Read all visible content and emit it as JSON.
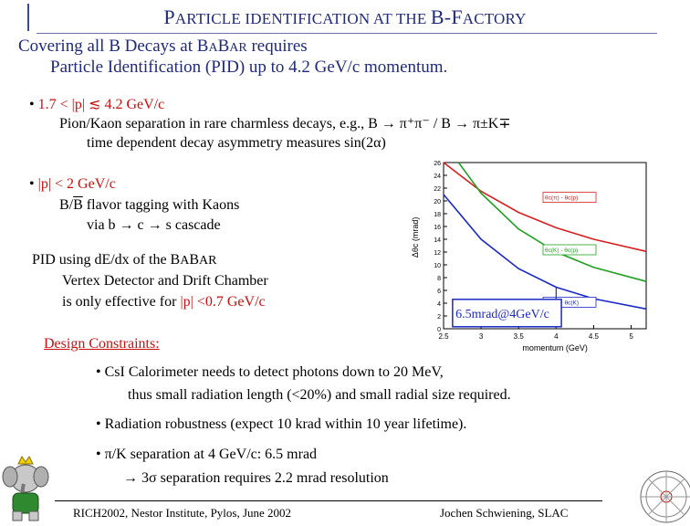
{
  "title": {
    "p1": "P",
    "p2": "ARTICLE IDENTIFICATION AT THE ",
    "p3": "B-F",
    "p4": "ACTORY"
  },
  "subtitle": {
    "line1_pre": "Covering all B Decays at B",
    "line1_sc1": "A",
    "line1_b": "B",
    "line1_sc2": "AR",
    "line1_post": " requires",
    "line2": "Particle Identification (PID) up to 4.2 GeV/c momentum."
  },
  "bullets": {
    "b1": {
      "dot": "•",
      "range": "1.7 < |p| ≲ 4.2 GeV/c",
      "line1": "Pion/Kaon separation in rare charmless decays, e.g.,  B → π⁺π⁻ / B → π±K∓",
      "line2": "time dependent decay asymmetry measures  sin(2α)"
    },
    "b2": {
      "dot": "•",
      "range": "|p| < 2 GeV/c",
      "line1_pre": "B/",
      "line1_bar": "B",
      "line1_post": " flavor tagging with Kaons",
      "line2": "via b → c → s cascade"
    },
    "pid": {
      "l1_pre": "PID using dE/dx of the B",
      "l1_sc1": "A",
      "l1_b": "B",
      "l1_sc2": "AR",
      "l2": "Vertex Detector and Drift Chamber",
      "l3_pre": "is only effective for ",
      "l3_red": "|p| <0.7 GeV/c"
    }
  },
  "design": {
    "heading": "Design Constraints:",
    "d1": "• CsI Calorimeter needs to detect photons down to 20 MeV,",
    "d1a": "thus small radiation length (<20%) and small radial size required.",
    "d2": "• Radiation robustness (expect 10 krad within 10 year lifetime).",
    "d3": "• π/K separation at 4 GeV/c: 6.5 mrad",
    "d3a": "→ 3σ separation requires 2.2 mrad resolution"
  },
  "footer": {
    "left": "RICH2002, Nestor Institute, Pylos, June 2002",
    "right": "Jochen Schwiening, SLAC"
  },
  "chart_data": {
    "type": "line",
    "xlabel": "momentum   (GeV)",
    "ylabel": "Δθc  (mrad)",
    "xlim": [
      2.5,
      5.2
    ],
    "ylim": [
      0,
      26
    ],
    "xticks": [
      "2.5",
      "3",
      "3.5",
      "4",
      "4.5",
      "5"
    ],
    "yticks": [
      "0",
      "2",
      "4",
      "6",
      "8",
      "10",
      "12",
      "14",
      "16",
      "18",
      "20",
      "22",
      "24",
      "26"
    ],
    "annotation": "6.5mrad@4GeV/c",
    "series": [
      {
        "name": "θc(π) - θc(p)",
        "color": "#d62020",
        "x": [
          2.5,
          3,
          3.5,
          4,
          4.5,
          5.2
        ],
        "y": [
          26,
          21.5,
          18.2,
          15.8,
          14.0,
          12.1
        ]
      },
      {
        "name": "θc(K) - θc(p)",
        "color": "#20a020",
        "x": [
          2.7,
          3,
          3.5,
          4,
          4.5,
          5.2
        ],
        "y": [
          26,
          21.2,
          15.6,
          12.0,
          9.6,
          7.4
        ]
      },
      {
        "name": "θc(π) - θc(K)",
        "color": "#1a28c8",
        "x": [
          2.5,
          3,
          3.5,
          4,
          4.5,
          5.2
        ],
        "y": [
          21.0,
          14.0,
          9.4,
          6.5,
          4.7,
          3.1
        ]
      }
    ]
  }
}
